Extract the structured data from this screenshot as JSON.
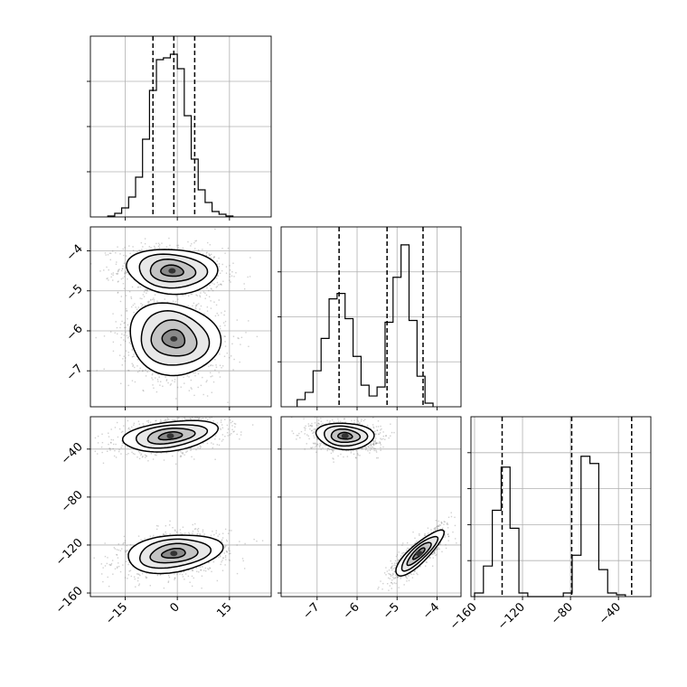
{
  "chart_data": {
    "type": "corner",
    "grid": true,
    "colors": {
      "ink": "#000000",
      "grid": "#b0b0b0",
      "scatter": "#777777"
    },
    "panels": [
      {
        "id": "hist-p1",
        "type": "histogram",
        "xlim": [
          -25,
          27
        ],
        "ymax": 1.0,
        "xticks": [
          -15,
          0,
          15
        ],
        "yticks": [
          0.25,
          0.5,
          0.75
        ],
        "bins": {
          "start": -20,
          "step": 2,
          "heights": [
            0.005,
            0.02,
            0.05,
            0.11,
            0.22,
            0.43,
            0.7,
            0.87,
            0.88,
            0.9,
            0.82,
            0.56,
            0.32,
            0.15,
            0.08,
            0.03,
            0.015,
            0.005
          ]
        },
        "quantiles": [
          -7,
          -1,
          5
        ]
      },
      {
        "id": "hist-p2",
        "type": "histogram",
        "xlim": [
          -7.9,
          -3.4
        ],
        "ymax": 1.0,
        "xticks": [
          -7,
          -6,
          -5,
          -4
        ],
        "yticks": [
          0.25,
          0.5,
          0.75
        ],
        "bins": {
          "start": -7.5,
          "step": 0.2,
          "heights": [
            0.04,
            0.08,
            0.2,
            0.38,
            0.6,
            0.63,
            0.49,
            0.28,
            0.12,
            0.06,
            0.11,
            0.47,
            0.72,
            0.9,
            0.48,
            0.17,
            0.02
          ]
        },
        "quantiles": [
          -6.45,
          -5.25,
          -4.35
        ]
      },
      {
        "id": "hist-p3",
        "type": "histogram",
        "xlim": [
          -163,
          -13
        ],
        "ymax": 1.0,
        "xticks": [
          -160,
          -120,
          -80,
          -40
        ],
        "yticks": [
          0.2,
          0.4,
          0.6,
          0.8
        ],
        "bins": {
          "start": -160,
          "step": 7.4,
          "heights": [
            0.02,
            0.17,
            0.48,
            0.72,
            0.38,
            0.02,
            0,
            0,
            0,
            0,
            0.02,
            0.23,
            0.78,
            0.74,
            0.15,
            0.02,
            0.01
          ]
        },
        "quantiles": [
          -137,
          -79,
          -29
        ]
      },
      {
        "id": "scatter-p1-p2",
        "type": "density",
        "xlim": [
          -25,
          27
        ],
        "ylim": [
          -7.9,
          -3.4
        ],
        "xticks": [
          -15,
          0,
          15
        ],
        "yticks": [
          -7,
          -6,
          -5,
          -4
        ],
        "clusters": [
          {
            "cx": -1.5,
            "cy": -4.5,
            "sx": 6.5,
            "sy": 0.28,
            "rho": -0.1,
            "weight": 0.5
          },
          {
            "cx": -1.0,
            "cy": -6.2,
            "sx": 6.5,
            "sy": 0.45,
            "rho": -0.1,
            "weight": 0.5
          }
        ]
      },
      {
        "id": "scatter-p1-p3",
        "type": "density",
        "xlim": [
          -25,
          27
        ],
        "ylim": [
          -163,
          -13
        ],
        "xticks": [
          -15,
          0,
          15
        ],
        "yticks": [
          -160,
          -120,
          -80,
          -40
        ],
        "clusters": [
          {
            "cx": -2.0,
            "cy": -29,
            "sx": 6.8,
            "sy": 6.5,
            "rho": 0.35,
            "weight": 0.5
          },
          {
            "cx": -1.0,
            "cy": -127,
            "sx": 6.8,
            "sy": 8.0,
            "rho": 0.25,
            "weight": 0.5
          }
        ]
      },
      {
        "id": "scatter-p2-p3",
        "type": "density",
        "xlim": [
          -7.9,
          -3.4
        ],
        "ylim": [
          -163,
          -13
        ],
        "xticks": [
          -7,
          -6,
          -5,
          -4
        ],
        "yticks": [
          -160,
          -120,
          -80,
          -40
        ],
        "clusters": [
          {
            "cx": -6.3,
            "cy": -29,
            "sx": 0.36,
            "sy": 5.5,
            "rho": -0.1,
            "weight": 0.5
          },
          {
            "cx": -4.45,
            "cy": -127,
            "sx": 0.3,
            "sy": 9.5,
            "rho": 0.85,
            "weight": 0.5
          }
        ]
      }
    ]
  }
}
